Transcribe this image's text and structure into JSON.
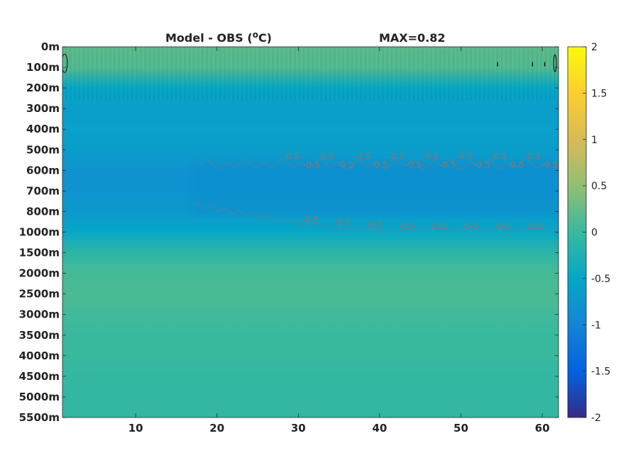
{
  "chart_data": {
    "type": "heatmap",
    "title": "Model - OBS (",
    "title_unit_sup": "o",
    "title_unit": "C)",
    "max_label": "MAX=0.82",
    "x_ticks": [
      "10",
      "20",
      "30",
      "40",
      "50",
      "60"
    ],
    "x_tick_values": [
      10,
      20,
      30,
      40,
      50,
      60
    ],
    "xlim": [
      1,
      62
    ],
    "y_ticks": [
      "0m",
      "100m",
      "200m",
      "300m",
      "400m",
      "500m",
      "600m",
      "700m",
      "800m",
      "1000m",
      "1500m",
      "2000m",
      "2500m",
      "3000m",
      "3500m",
      "4000m",
      "4500m",
      "5000m",
      "5500m"
    ],
    "y_axis_reversed": true,
    "colorbar_ticks": [
      "2",
      "1.5",
      "1",
      "0.5",
      "0",
      "-0.5",
      "-1",
      "-1.5",
      "-2"
    ],
    "colorbar_tick_values": [
      2,
      1.5,
      1,
      0.5,
      0,
      -0.5,
      -1,
      -1.5,
      -2
    ],
    "clim": [
      -2,
      2
    ],
    "colormap": "parula",
    "colormap_stops": [
      "#352a87",
      "#0363e1",
      "#1485d4",
      "#06a7c6",
      "#38b99e",
      "#92bf73",
      "#d9ba56",
      "#fcce2e",
      "#f9fb0e"
    ],
    "contour_label_color": "#8a7a6a",
    "contour_levels": [
      -0.5,
      0.5
    ],
    "contour_labels_upper": [
      "0.5",
      "-0.5",
      "0.5",
      "-0.5",
      "-0.5",
      "-0.5",
      "-0.5",
      "-0.5",
      "-0.5",
      "-0.5",
      "-0.5",
      "-0.5",
      "-0.5",
      "-0.5",
      "-0.5",
      "-0.5"
    ],
    "contour_labels_lower": [
      "-0.5",
      "-0.5",
      "-0.5",
      "-0.5",
      "-0.5",
      "-0.5",
      "-0.5",
      "-0.5"
    ],
    "depth_profile": [
      {
        "level": 0,
        "value": 0.2
      },
      {
        "level": 1,
        "value": 0.15
      },
      {
        "level": 2,
        "value": -0.5
      },
      {
        "level": 3,
        "value": -0.65
      },
      {
        "level": 4,
        "value": -0.6
      },
      {
        "level": 5,
        "value": -0.65
      },
      {
        "level": 6,
        "value": -0.8
      },
      {
        "level": 7,
        "value": -0.8
      },
      {
        "level": 8,
        "value": -0.7
      },
      {
        "level": 9,
        "value": -0.5
      },
      {
        "level": 10,
        "value": -0.1
      },
      {
        "level": 11,
        "value": 0.05
      },
      {
        "level": 12,
        "value": 0.1
      },
      {
        "level": 13,
        "value": 0.05
      },
      {
        "level": 14,
        "value": 0.0
      },
      {
        "level": 15,
        "value": 0.0
      },
      {
        "level": 16,
        "value": -0.05
      },
      {
        "level": 17,
        "value": -0.05
      },
      {
        "level": 18,
        "value": -0.05
      }
    ]
  }
}
